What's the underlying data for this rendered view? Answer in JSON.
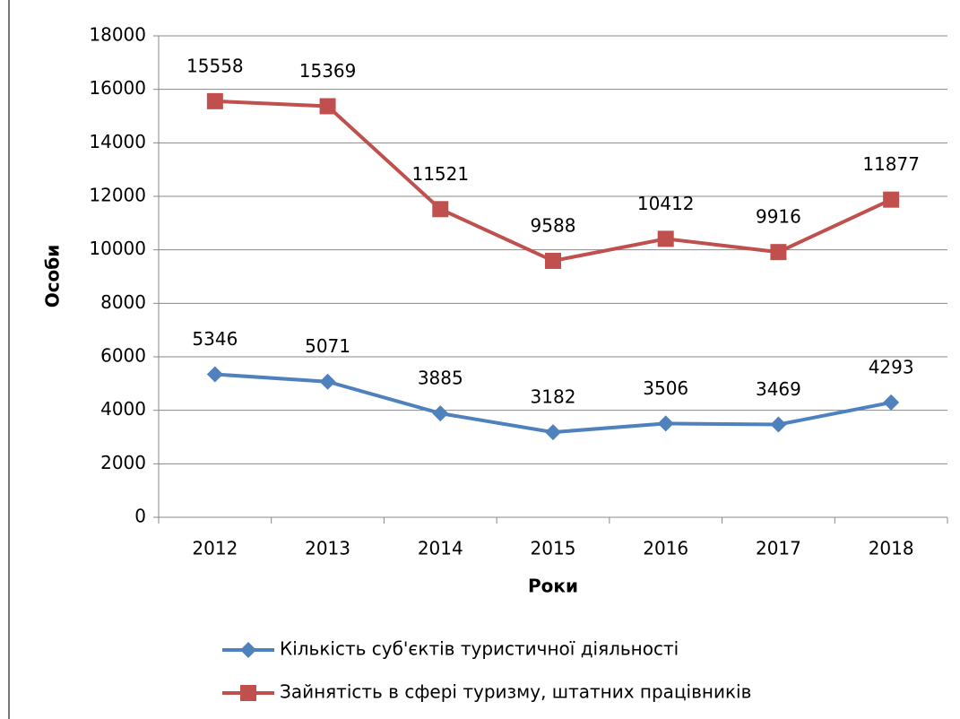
{
  "chart_data": {
    "type": "line",
    "categories": [
      "2012",
      "2013",
      "2014",
      "2015",
      "2016",
      "2017",
      "2018"
    ],
    "series": [
      {
        "name": "Кількість суб'єктів туристичної діяльності",
        "color": "#4f81bd",
        "marker": "diamond",
        "values": [
          5346,
          5071,
          3885,
          3182,
          3506,
          3469,
          4293
        ]
      },
      {
        "name": "Зайнятість в сфері туризму, штатних працівників",
        "color": "#c0504d",
        "marker": "square",
        "values": [
          15558,
          15369,
          11521,
          9588,
          10412,
          9916,
          11877
        ]
      }
    ],
    "xlabel": "Роки",
    "ylabel": "Особи",
    "ylim": [
      0,
      18000
    ],
    "yticks": [
      0,
      2000,
      4000,
      6000,
      8000,
      10000,
      12000,
      14000,
      16000,
      18000
    ],
    "grid": true,
    "legend": "bottom"
  }
}
